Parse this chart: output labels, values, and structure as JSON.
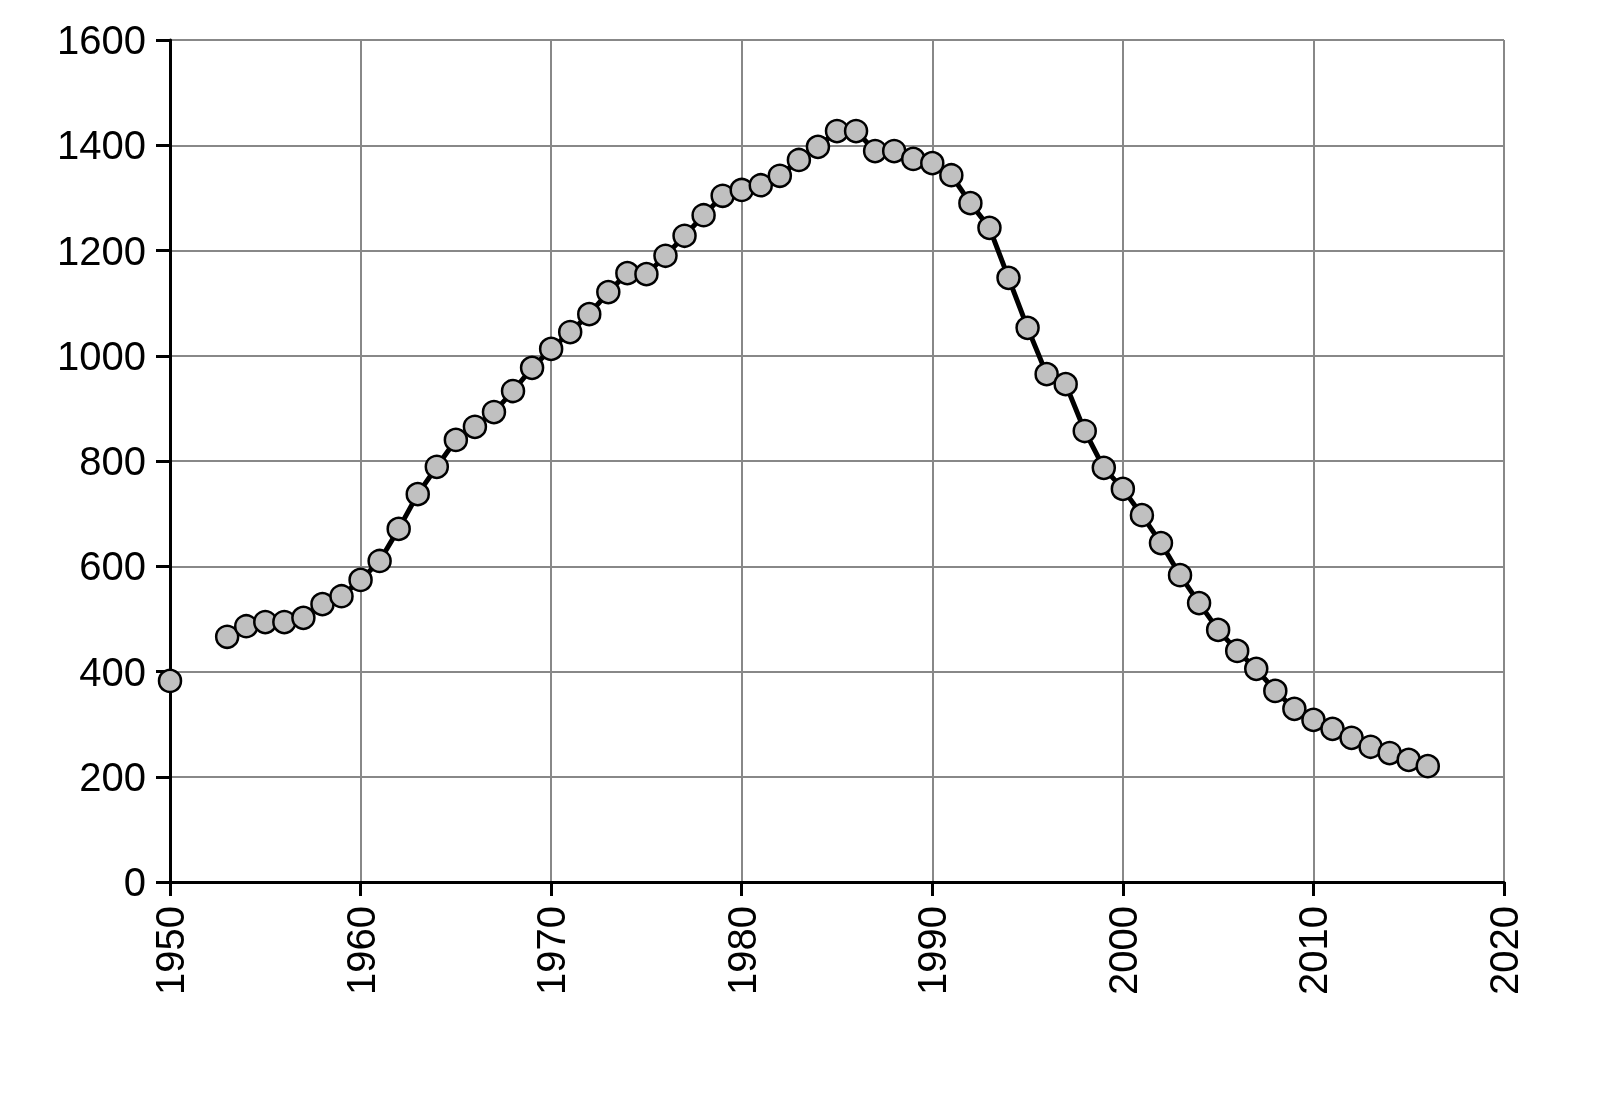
{
  "chart_data": {
    "type": "line",
    "x": [
      1950,
      1951,
      1952,
      1953,
      1954,
      1955,
      1956,
      1957,
      1958,
      1959,
      1960,
      1961,
      1962,
      1963,
      1964,
      1965,
      1966,
      1967,
      1968,
      1969,
      1970,
      1971,
      1972,
      1973,
      1974,
      1975,
      1976,
      1977,
      1978,
      1979,
      1980,
      1981,
      1982,
      1983,
      1984,
      1985,
      1986,
      1987,
      1988,
      1989,
      1990,
      1991,
      1992,
      1993,
      1994,
      1995,
      1996,
      1997,
      1998,
      1999,
      2000,
      2001,
      2002,
      2003,
      2004,
      2005,
      2006,
      2007,
      2008,
      2009,
      2010,
      2011,
      2012,
      2013,
      2014,
      2015,
      2016
    ],
    "series": [
      {
        "color": "#000000",
        "values": [
          382,
          null,
          null,
          466,
          486,
          494,
          494,
          502,
          528,
          543,
          574,
          610,
          671,
          737,
          789,
          840,
          865,
          893,
          933,
          977,
          1013,
          1045,
          1079,
          1121,
          1157,
          1155,
          1190,
          1228,
          1267,
          1304,
          1315,
          1324,
          1342,
          1372,
          1397,
          1427,
          1427,
          1389,
          1389,
          1374,
          1366,
          1343,
          1290,
          1243,
          1148,
          1053,
          965,
          946,
          857,
          787,
          747,
          697,
          644,
          583,
          530,
          479,
          439,
          405,
          363,
          329,
          308,
          291,
          274,
          257,
          245,
          232,
          220
        ]
      }
    ],
    "xlim": [
      1950,
      2020
    ],
    "xticks": [
      1950,
      1960,
      1970,
      1980,
      1990,
      2000,
      2010,
      2020
    ],
    "ylim": [
      0,
      1600
    ],
    "yticks": [
      0,
      200,
      400,
      600,
      800,
      1000,
      1200,
      1400,
      1600
    ],
    "grid": true,
    "marker": "circle",
    "line_style": "solid"
  }
}
